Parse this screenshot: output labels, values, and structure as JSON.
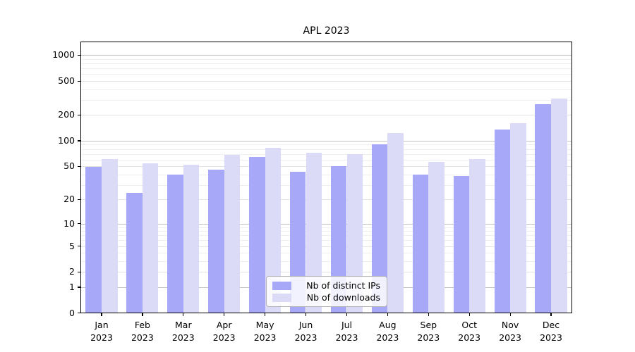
{
  "chart_data": {
    "type": "bar",
    "title": "APL 2023",
    "categories": [
      "Jan",
      "Feb",
      "Mar",
      "Apr",
      "May",
      "Jun",
      "Jul",
      "Aug",
      "Sep",
      "Oct",
      "Nov",
      "Dec"
    ],
    "category_year": "2023",
    "series": [
      {
        "name": "Nb of distinct IPs",
        "color": "#a8a8f8",
        "values": [
          49,
          24,
          40,
          46,
          64,
          43,
          50,
          91,
          40,
          38,
          135,
          267
        ]
      },
      {
        "name": "Nb of downloads",
        "color": "#dbdbf8",
        "values": [
          61,
          54,
          52,
          68,
          82,
          72,
          69,
          123,
          56,
          61,
          162,
          313
        ]
      }
    ],
    "y_axis": {
      "scale": "log(value+1)",
      "tick_labels": [
        0,
        1,
        2,
        5,
        10,
        20,
        50,
        100,
        200,
        500,
        1000
      ],
      "range_top": 1450
    },
    "grid": {
      "enabled": true,
      "major_lines": [
        1,
        10,
        100,
        1000
      ],
      "labeled_lines": [
        2,
        5,
        20,
        50,
        200,
        500
      ],
      "minor_lines": [
        3,
        4,
        6,
        7,
        8,
        9,
        30,
        40,
        60,
        70,
        80,
        90,
        300,
        400,
        600,
        700,
        800,
        900
      ]
    },
    "legend_position": "lower center"
  }
}
